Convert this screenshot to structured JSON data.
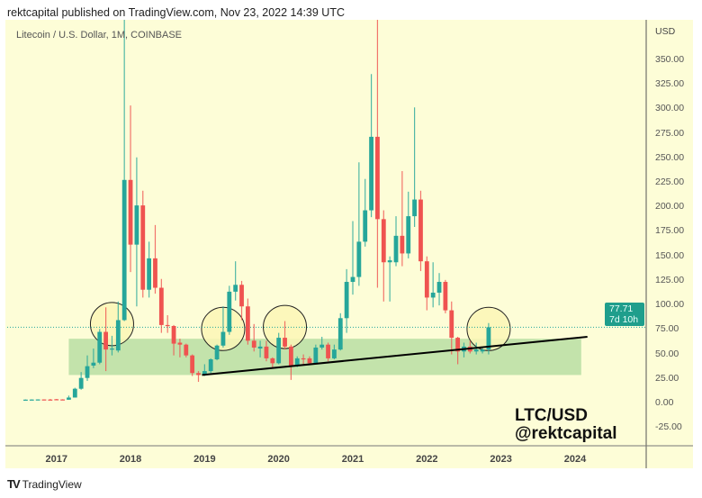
{
  "header": {
    "published": "rektcapital published on TradingView.com, Nov 23, 2022 14:39 UTC"
  },
  "legend": {
    "symbol": "Litecoin / U.S. Dollar, 1M, COINBASE"
  },
  "watermark": {
    "line1": "LTC/USD",
    "line2": "@rektcapital"
  },
  "footer": {
    "brand": "TradingView",
    "logo": "TV"
  },
  "price_tag": {
    "price": "77.71",
    "countdown": "7d 10h"
  },
  "colors": {
    "up": "#26a69a",
    "down": "#ef5350",
    "background": "#fdfdd7",
    "zone": "#c3e3ab",
    "circle_fill": "#fbf6b6",
    "price_tag": "#1f9e8c"
  },
  "chart_data": {
    "type": "candlestick",
    "title": "",
    "yaxis": {
      "label": "USD",
      "ticks": [
        "350.00",
        "325.00",
        "300.00",
        "275.00",
        "250.00",
        "225.00",
        "200.00",
        "175.00",
        "150.00",
        "125.00",
        "100.00",
        "75.00",
        "50.00",
        "25.00",
        "0.00",
        "-25.00"
      ],
      "range": [
        -35,
        395
      ]
    },
    "xaxis": {
      "ticks": [
        "2017",
        "2018",
        "2019",
        "2020",
        "2021",
        "2022",
        "2023",
        "2024"
      ]
    },
    "last_price": 77.71,
    "candles_fields": [
      "month",
      "open",
      "high",
      "low",
      "close"
    ],
    "candles": [
      [
        "2016-08",
        3.7,
        4.1,
        3.5,
        3.9
      ],
      [
        "2016-09",
        3.9,
        4.2,
        3.7,
        4.0
      ],
      [
        "2016-10",
        4.0,
        4.2,
        3.6,
        4.1
      ],
      [
        "2016-11",
        4.1,
        4.2,
        3.8,
        3.9
      ],
      [
        "2016-12",
        4.0,
        4.6,
        3.7,
        3.9
      ],
      [
        "2017-01",
        4.3,
        4.6,
        3.7,
        4.1
      ],
      [
        "2017-02",
        4.1,
        4.3,
        3.6,
        3.8
      ],
      [
        "2017-03",
        3.8,
        8,
        3.7,
        6
      ],
      [
        "2017-04",
        6,
        16,
        6,
        15
      ],
      [
        "2017-05",
        15,
        32,
        14,
        26
      ],
      [
        "2017-06",
        26,
        49,
        23,
        38
      ],
      [
        "2017-07",
        38.6,
        56,
        36,
        41.6
      ],
      [
        "2017-08",
        41.6,
        76,
        40,
        73
      ],
      [
        "2017-09",
        73,
        98,
        33,
        55
      ],
      [
        "2017-10",
        55,
        69,
        49,
        56
      ],
      [
        "2017-11",
        54,
        104,
        52,
        85
      ],
      [
        "2017-12",
        85,
        420,
        84,
        228
      ],
      [
        "2018-01",
        228,
        304,
        134,
        162
      ],
      [
        "2018-02",
        162,
        251,
        99,
        202
      ],
      [
        "2018-03",
        202,
        217,
        108,
        116
      ],
      [
        "2018-04",
        116,
        165,
        108,
        148
      ],
      [
        "2018-05",
        148,
        182,
        112,
        118
      ],
      [
        "2018-06",
        118,
        127,
        72,
        80
      ],
      [
        "2018-07",
        80,
        90,
        72,
        79
      ],
      [
        "2018-08",
        79,
        80,
        49,
        61
      ],
      [
        "2018-09",
        62,
        66,
        47,
        60
      ],
      [
        "2018-10",
        60,
        61,
        47,
        49
      ],
      [
        "2018-11",
        49,
        50,
        28,
        31
      ],
      [
        "2018-12",
        31,
        33,
        22,
        29
      ],
      [
        "2019-01",
        29,
        40,
        28,
        33
      ],
      [
        "2019-02",
        33,
        46,
        31,
        45
      ],
      [
        "2019-03",
        45,
        60,
        44,
        59
      ],
      [
        "2019-04",
        59,
        99,
        57,
        73
      ],
      [
        "2019-05",
        73,
        120,
        70,
        114
      ],
      [
        "2019-06",
        114,
        145,
        105,
        121
      ],
      [
        "2019-07",
        121,
        125,
        85,
        99
      ],
      [
        "2019-08",
        99,
        107,
        60,
        64
      ],
      [
        "2019-09",
        64,
        81,
        53,
        57
      ],
      [
        "2019-10",
        56,
        64,
        47,
        58
      ],
      [
        "2019-11",
        58,
        64,
        43,
        46
      ],
      [
        "2019-12",
        46,
        47,
        36,
        41
      ],
      [
        "2020-01",
        41,
        72,
        40,
        67
      ],
      [
        "2020-02",
        67,
        84,
        55,
        58
      ],
      [
        "2020-03",
        58,
        60,
        24,
        38
      ],
      [
        "2020-04",
        39,
        48,
        37,
        46
      ],
      [
        "2020-05",
        46,
        50,
        40,
        45
      ],
      [
        "2020-06",
        46,
        48,
        40,
        41
      ],
      [
        "2020-07",
        41,
        60,
        40,
        57
      ],
      [
        "2020-08",
        57,
        68,
        55,
        60
      ],
      [
        "2020-09",
        60,
        62,
        43,
        46
      ],
      [
        "2020-10",
        46,
        60,
        45,
        55
      ],
      [
        "2020-11",
        55,
        92,
        54,
        87
      ],
      [
        "2020-12",
        87,
        137,
        72,
        124
      ],
      [
        "2021-01",
        124,
        186,
        111,
        129
      ],
      [
        "2021-02",
        129,
        246,
        120,
        165
      ],
      [
        "2021-03",
        165,
        229,
        160,
        197
      ],
      [
        "2021-04",
        197,
        336,
        190,
        272
      ],
      [
        "2021-05",
        272,
        413,
        118,
        188
      ],
      [
        "2021-06",
        188,
        197,
        104,
        144
      ],
      [
        "2021-07",
        144,
        150,
        104,
        146
      ],
      [
        "2021-08",
        144,
        191,
        140,
        171
      ],
      [
        "2021-09",
        171,
        237,
        140,
        153
      ],
      [
        "2021-10",
        153,
        216,
        148,
        191
      ],
      [
        "2021-11",
        191,
        302,
        180,
        208
      ],
      [
        "2021-12",
        208,
        217,
        135,
        145
      ],
      [
        "2022-01",
        145,
        150,
        95,
        108
      ],
      [
        "2022-02",
        108,
        144,
        98,
        113
      ],
      [
        "2022-03",
        113,
        133,
        100,
        124
      ],
      [
        "2022-04",
        124,
        126,
        92,
        95
      ],
      [
        "2022-05",
        95,
        104,
        50,
        67
      ],
      [
        "2022-06",
        67,
        68,
        40,
        53
      ],
      [
        "2022-07",
        53,
        62,
        47,
        58
      ],
      [
        "2022-08",
        58,
        64,
        51,
        53
      ],
      [
        "2022-09",
        53,
        62,
        50,
        55
      ],
      [
        "2022-10",
        53,
        57,
        51,
        55
      ],
      [
        "2022-11",
        55,
        82,
        50,
        77.71
      ]
    ],
    "annotations": {
      "support_zone": {
        "from": "2017-03",
        "to": "2024-02",
        "low": 29,
        "high": 66
      },
      "trendline": {
        "from": [
          "2018-12",
          29
        ],
        "to": [
          "2024-03",
          68
        ]
      },
      "circles": [
        [
          "2017-10",
          81
        ],
        [
          "2019-04",
          76
        ],
        [
          "2020-02",
          78
        ],
        [
          "2022-11",
          76
        ]
      ]
    }
  }
}
